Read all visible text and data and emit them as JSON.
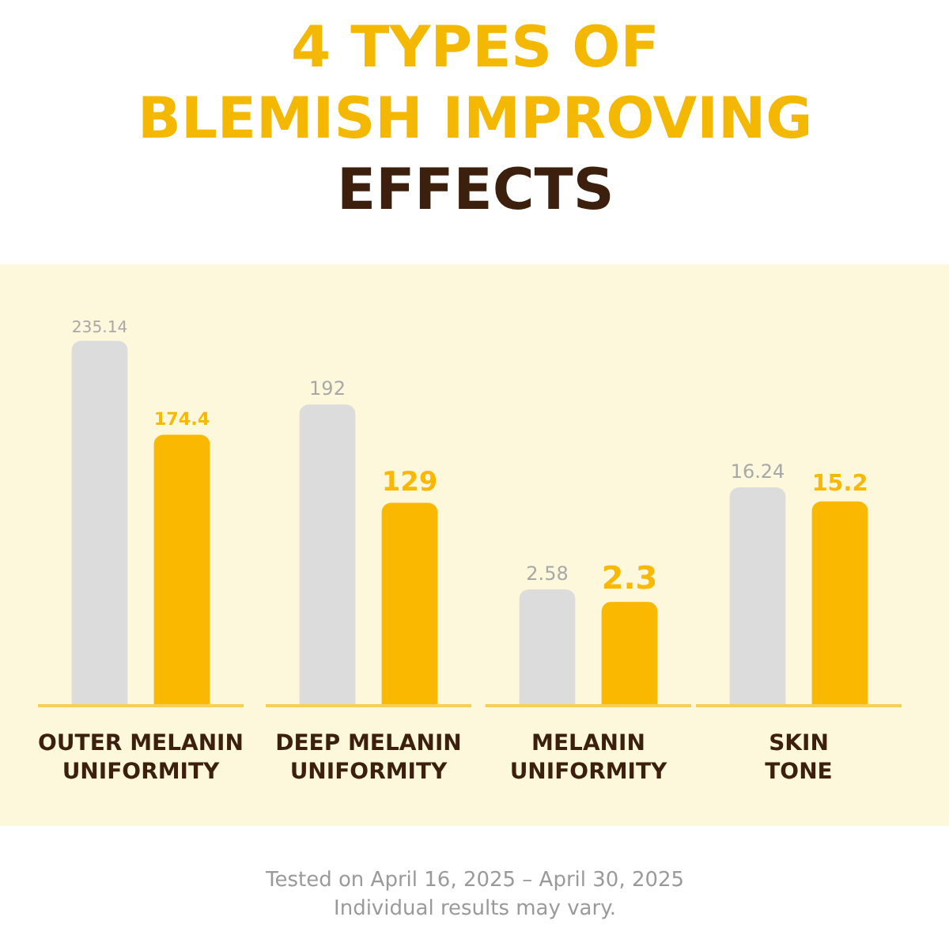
{
  "chart_data": [
    {
      "type": "bar",
      "title": "4 TYPES OF\nBLEMISH IMPROVING\nEFFECTS",
      "annotations": [
        "Tested on April 16, 2025 – April 30, 2025",
        "Individual results may vary."
      ],
      "xlabel": "OUTER MELANIN\nUNIFORMITY",
      "categories": [
        null,
        null
      ],
      "values": [
        235.14,
        174.4
      ],
      "colors": [
        "#dcdcdc",
        "#fbb800"
      ],
      "data_labels": true,
      "tick_labels": false
    },
    {
      "type": "bar",
      "xlabel": "DEEP MELANIN\nUNIFORMITY",
      "categories": [
        null,
        null
      ],
      "values": [
        192,
        129
      ],
      "colors": [
        "#dcdcdc",
        "#fbb800"
      ],
      "data_labels": true,
      "tick_labels": false
    },
    {
      "type": "bar",
      "xlabel": "MELANIN\nUNIFORMITY",
      "categories": [
        null,
        null
      ],
      "values": [
        2.58,
        2.3
      ],
      "colors": [
        "#dcdcdc",
        "#fbb800"
      ],
      "data_labels": true,
      "tick_labels": false
    },
    {
      "type": "bar",
      "xlabel": "SKIN\nTONE",
      "categories": [
        null,
        null
      ],
      "values": [
        16.24,
        15.2
      ],
      "colors": [
        "#dcdcdc",
        "#fbb800"
      ],
      "data_labels": true,
      "tick_labels": false
    }
  ]
}
